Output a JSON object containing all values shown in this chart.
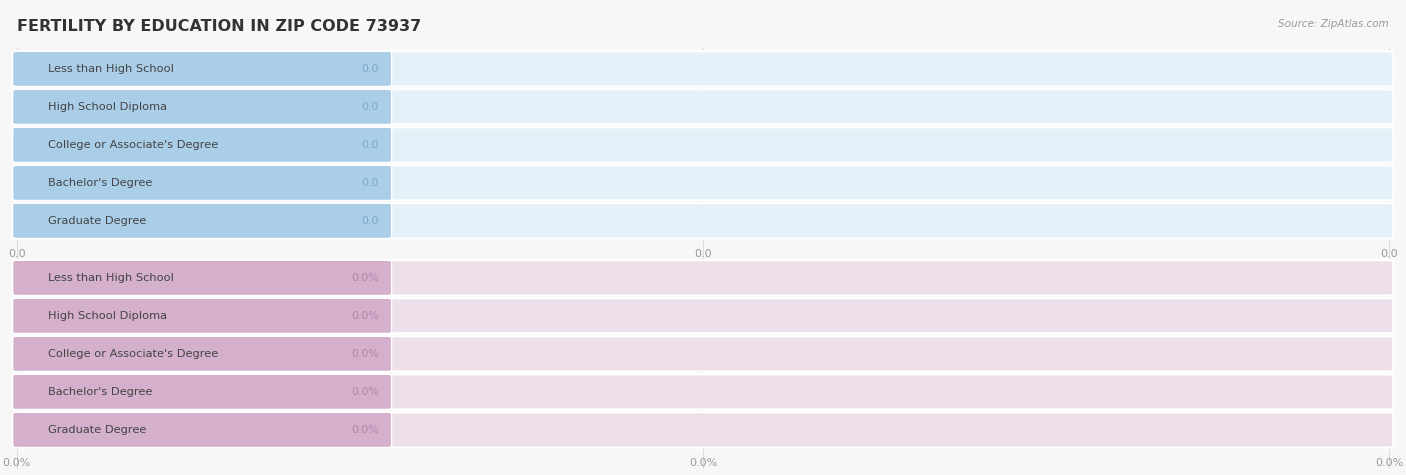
{
  "title": "FERTILITY BY EDUCATION IN ZIP CODE 73937",
  "source": "Source: ZipAtlas.com",
  "categories": [
    "Less than High School",
    "High School Diploma",
    "College or Associate's Degree",
    "Bachelor's Degree",
    "Graduate Degree"
  ],
  "group1_labels": [
    "0.0",
    "0.0",
    "0.0",
    "0.0",
    "0.0"
  ],
  "group2_labels": [
    "0.0%",
    "0.0%",
    "0.0%",
    "0.0%",
    "0.0%"
  ],
  "group1_bar_color": "#aacde8",
  "group1_bg_color": "#e5f1f8",
  "group1_text_color": "#7aaac8",
  "group2_bar_color": "#d4b0cc",
  "group2_bg_color": "#ede0ea",
  "group2_text_color": "#b088a8",
  "label_text_color": "#444444",
  "bg_color": "#f7f7f7",
  "grid_color": "#dddddd",
  "axis_label_color": "#999999",
  "title_color": "#333333",
  "source_color": "#999999",
  "x_tick_labels_group1": [
    "0.0",
    "0.0",
    "0.0"
  ],
  "x_tick_labels_group2": [
    "0.0%",
    "0.0%",
    "0.0%"
  ]
}
